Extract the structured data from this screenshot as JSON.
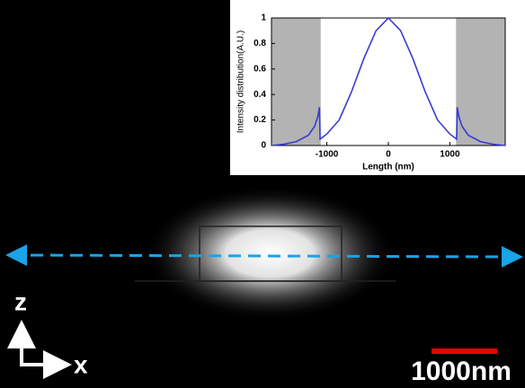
{
  "chart_data": {
    "type": "line",
    "xlabel": "Length (nm)",
    "ylabel": "Intensity distribution(A.U.)",
    "x": [
      -1900,
      -1700,
      -1500,
      -1300,
      -1200,
      -1150,
      -1120,
      -1110,
      -1000,
      -800,
      -600,
      -400,
      -200,
      0,
      200,
      400,
      600,
      800,
      1000,
      1110,
      1120,
      1150,
      1200,
      1300,
      1500,
      1700,
      1900
    ],
    "series": [
      {
        "color": "#3a3ad6",
        "values": [
          0,
          0.01,
          0.03,
          0.08,
          0.15,
          0.22,
          0.3,
          0.05,
          0.09,
          0.2,
          0.42,
          0.68,
          0.9,
          1,
          0.9,
          0.68,
          0.42,
          0.2,
          0.09,
          0.05,
          0.3,
          0.22,
          0.15,
          0.08,
          0.03,
          0.01,
          0
        ]
      }
    ],
    "shade": [
      [
        -1900,
        -1100
      ],
      [
        1100,
        1900
      ]
    ],
    "shade_color": "#b3b3b3",
    "xlim": [
      -1900,
      1900
    ],
    "xticks": [
      -1000,
      0,
      1000
    ],
    "ylim": [
      0,
      1
    ],
    "yticks": [
      0,
      0.2,
      0.4,
      0.6,
      0.8,
      1
    ]
  },
  "labels": {
    "z_axis": "z",
    "x_axis": "x",
    "scale_bar": "1000nm"
  }
}
